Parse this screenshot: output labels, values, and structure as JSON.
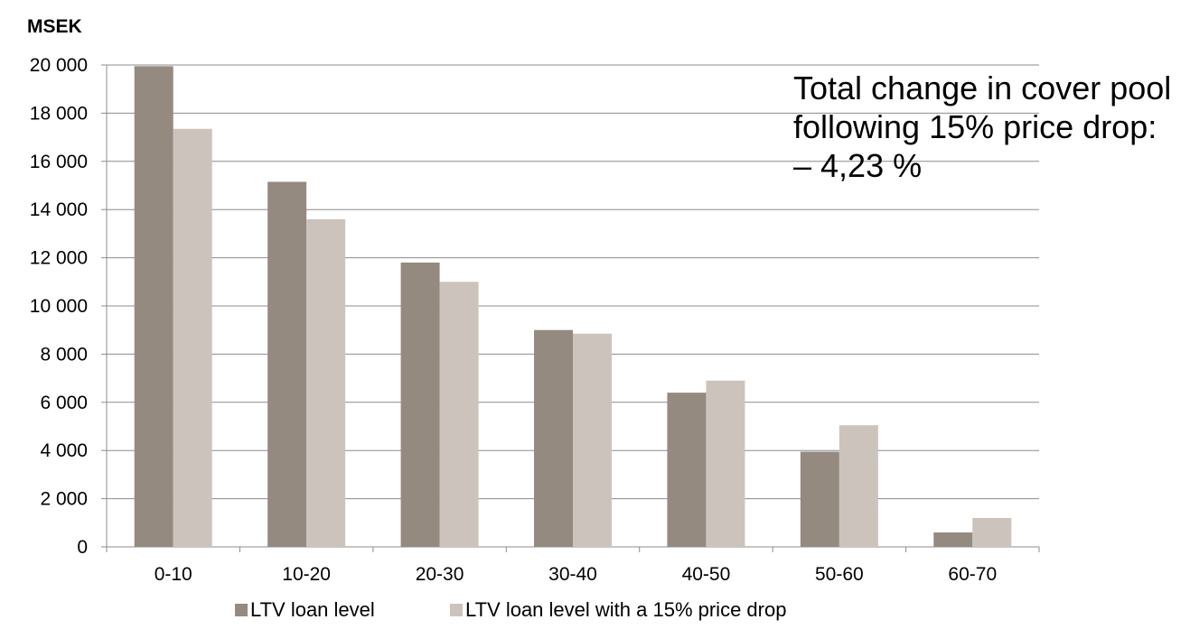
{
  "chart_data": {
    "type": "bar",
    "unit_label": "MSEK",
    "categories": [
      "0-10",
      "10-20",
      "20-30",
      "30-40",
      "40-50",
      "50-60",
      "60-70"
    ],
    "series": [
      {
        "name": "LTV loan level",
        "values": [
          19950,
          15150,
          11800,
          9000,
          6400,
          3950,
          600
        ]
      },
      {
        "name": "LTV loan level with a 15% price drop",
        "values": [
          17350,
          13600,
          11000,
          8850,
          6900,
          5050,
          1200
        ]
      }
    ],
    "y_ticks": [
      {
        "value": 0,
        "label": "0"
      },
      {
        "value": 2000,
        "label": "2 000"
      },
      {
        "value": 4000,
        "label": "4 000"
      },
      {
        "value": 6000,
        "label": "6 000"
      },
      {
        "value": 8000,
        "label": "8 000"
      },
      {
        "value": 10000,
        "label": "10 000"
      },
      {
        "value": 12000,
        "label": "12 000"
      },
      {
        "value": 14000,
        "label": "14 000"
      },
      {
        "value": 16000,
        "label": "16 000"
      },
      {
        "value": 18000,
        "label": "18 000"
      },
      {
        "value": 20000,
        "label": "20 000"
      }
    ],
    "ylim": [
      0,
      20000
    ],
    "grid": true,
    "legend_position": "bottom",
    "annotation": [
      "Total change in cover pool",
      "following 15% price drop:",
      "– 4,23 %"
    ]
  },
  "colors": {
    "series_1": "#948a80",
    "series_2": "#ccc4bc",
    "grid": "#8c8c8c",
    "axis": "#8c8c8c"
  }
}
